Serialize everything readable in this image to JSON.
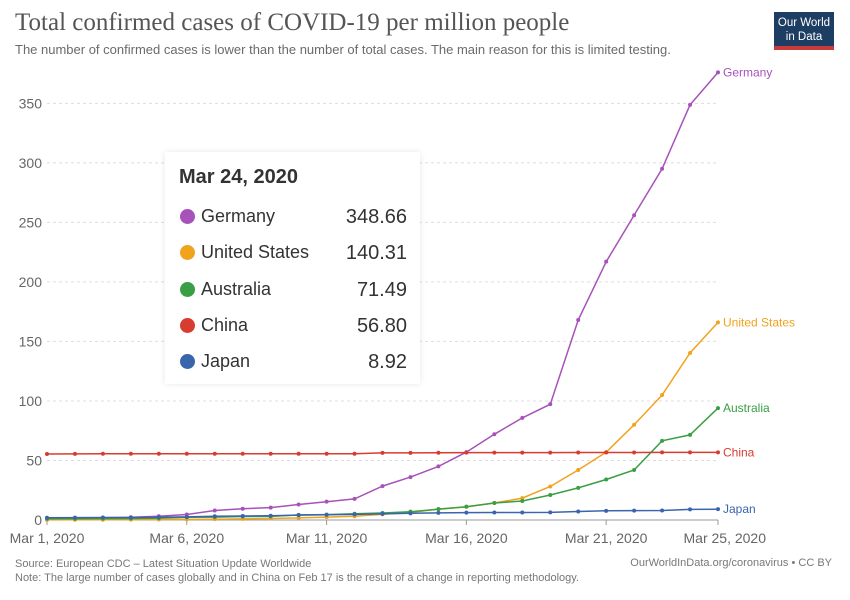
{
  "header": {
    "title": "Total confirmed cases of COVID-19 per million people",
    "subtitle": "The number of confirmed cases is lower than the number of total cases. The main reason for this is limited testing."
  },
  "logo": {
    "line1": "Our World",
    "line2": "in Data",
    "bg_color": "#1d3d63",
    "accent_color": "#c93a3a"
  },
  "chart_data": {
    "type": "line",
    "title": "Total confirmed cases of COVID-19 per million people",
    "x": [
      "Mar 1",
      "Mar 2",
      "Mar 3",
      "Mar 4",
      "Mar 5",
      "Mar 6",
      "Mar 7",
      "Mar 8",
      "Mar 9",
      "Mar 10",
      "Mar 11",
      "Mar 12",
      "Mar 13",
      "Mar 14",
      "Mar 15",
      "Mar 16",
      "Mar 17",
      "Mar 18",
      "Mar 19",
      "Mar 20",
      "Mar 21",
      "Mar 22",
      "Mar 23",
      "Mar 24",
      "Mar 25"
    ],
    "x_tick_labels": [
      "Mar 1, 2020",
      "Mar 6, 2020",
      "Mar 11, 2020",
      "Mar 16, 2020",
      "Mar 21, 2020",
      "Mar 25, 2020"
    ],
    "y_ticks": [
      0,
      50,
      100,
      150,
      200,
      250,
      300,
      350
    ],
    "ylim": [
      0,
      378
    ],
    "grid": true,
    "series": [
      {
        "name": "Germany",
        "color": "#a652ba",
        "values": [
          1.4,
          1.5,
          1.9,
          2.3,
          3.1,
          4.6,
          8.0,
          9.5,
          10.4,
          13.0,
          15.4,
          17.7,
          28.5,
          36.0,
          45.0,
          57.0,
          72.0,
          85.8,
          97.3,
          168.0,
          217.0,
          256.0,
          295.0,
          348.66,
          376.0
        ]
      },
      {
        "name": "United States",
        "color": "#f0a31d",
        "values": [
          0.1,
          0.2,
          0.2,
          0.3,
          0.4,
          0.5,
          0.7,
          0.9,
          1.3,
          1.8,
          2.4,
          3.1,
          4.8,
          6.3,
          9.2,
          11.0,
          14.3,
          18.4,
          28.1,
          42.0,
          57.0,
          80.0,
          105.0,
          140.31,
          166.0
        ]
      },
      {
        "name": "Australia",
        "color": "#3a9e44",
        "values": [
          1.1,
          1.1,
          1.2,
          1.3,
          1.6,
          2.3,
          2.4,
          2.9,
          3.0,
          4.3,
          4.5,
          5.2,
          5.9,
          7.0,
          9.1,
          11.2,
          14.3,
          16.0,
          21.0,
          27.0,
          34.0,
          42.0,
          66.5,
          71.49,
          94.0
        ]
      },
      {
        "name": "China",
        "color": "#d63d30",
        "values": [
          55.4,
          55.5,
          55.6,
          55.6,
          55.6,
          55.6,
          55.6,
          55.6,
          55.7,
          55.7,
          55.7,
          55.7,
          56.4,
          56.4,
          56.5,
          56.6,
          56.6,
          56.6,
          56.6,
          56.7,
          56.7,
          56.7,
          56.8,
          56.8,
          56.8
        ]
      },
      {
        "name": "Japan",
        "color": "#3a65ad",
        "values": [
          1.9,
          2.0,
          2.1,
          2.1,
          2.3,
          2.6,
          3.2,
          3.4,
          3.6,
          4.1,
          4.4,
          4.7,
          5.1,
          5.6,
          6.0,
          6.2,
          6.3,
          6.3,
          6.4,
          7.1,
          7.7,
          7.9,
          8.0,
          8.92,
          9.1
        ]
      }
    ],
    "end_labels": [
      "Germany",
      "United States",
      "Australia",
      "China",
      "Japan"
    ]
  },
  "tooltip": {
    "date": "Mar 24, 2020",
    "rows": [
      {
        "name": "Germany",
        "value": "348.66",
        "color": "#a652ba"
      },
      {
        "name": "United States",
        "value": "140.31",
        "color": "#f0a31d"
      },
      {
        "name": "Australia",
        "value": "71.49",
        "color": "#3a9e44"
      },
      {
        "name": "China",
        "value": "56.80",
        "color": "#d63d30"
      },
      {
        "name": "Japan",
        "value": "8.92",
        "color": "#3a65ad"
      }
    ]
  },
  "footer": {
    "source": "Source: European CDC – Latest Situation Update Worldwide",
    "note": "Note: The large number of cases globally and in China on Feb 17 is the result of a change in reporting methodology.",
    "credit": "OurWorldInData.org/coronavirus • CC BY"
  }
}
